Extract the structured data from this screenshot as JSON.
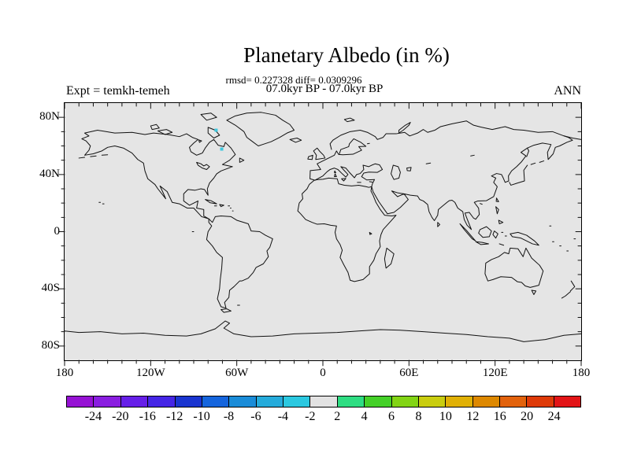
{
  "figure": {
    "title": "Planetary Albedo (in %)",
    "stats_line": "rmsd= 0.227328 diff= 0.0309296",
    "period_line": "07.0kyr BP - 07.0kyr BP",
    "experiment_label": "Expt = temkh-temeh",
    "season_label": "ANN"
  },
  "chart_data": {
    "type": "map-contour",
    "projection": "equirectangular",
    "title": "Planetary Albedo (in %)",
    "subtitle": "07.0kyr BP - 07.0kyr BP",
    "experiment": "temkh-temeh",
    "season": "ANN",
    "stats": {
      "rmsd": 0.227328,
      "diff": 0.0309296
    },
    "lon_range": [
      -180,
      180
    ],
    "lat_range": [
      -90,
      90
    ],
    "map_background": "#E5E5E5",
    "coastline_color": "#111111",
    "axes": {
      "x_ticks": [
        {
          "label": "180",
          "lon": -180
        },
        {
          "label": "120W",
          "lon": -120
        },
        {
          "label": "60W",
          "lon": -60
        },
        {
          "label": "0",
          "lon": 0
        },
        {
          "label": "60E",
          "lon": 60
        },
        {
          "label": "120E",
          "lon": 120
        },
        {
          "label": "180",
          "lon": 180
        }
      ],
      "y_ticks": [
        {
          "label": "80N",
          "lat": 80
        },
        {
          "label": "40N",
          "lat": 40
        },
        {
          "label": "0",
          "lat": 0
        },
        {
          "label": "40S",
          "lat": -40
        },
        {
          "label": "80S",
          "lat": -80
        }
      ],
      "minor_tick_step_deg": 10
    },
    "colorbar": {
      "levels": [
        -24,
        -20,
        -16,
        -12,
        -10,
        -8,
        -6,
        -4,
        -2,
        2,
        4,
        6,
        8,
        10,
        12,
        16,
        20,
        24
      ],
      "tick_labels": [
        "-24",
        "-20",
        "-16",
        "-12",
        "-10",
        "-8",
        "-6",
        "-4",
        "-2",
        "2",
        "4",
        "6",
        "8",
        "10",
        "12",
        "16",
        "20",
        "24"
      ],
      "colors": [
        "#9612D4",
        "#8A1EE0",
        "#661FE8",
        "#4526E6",
        "#1A35D0",
        "#1565DD",
        "#1A8CD8",
        "#25ABDB",
        "#2BC8E0",
        "#E2E2E2",
        "#2EDD82",
        "#44D028",
        "#82D414",
        "#C9CD0F",
        "#E0B005",
        "#DD8800",
        "#E2620C",
        "#DE3A08",
        "#E21417"
      ]
    },
    "anomaly_points": [
      {
        "lon": -74.4,
        "lat": 71.0,
        "color": "#3EC8DF"
      },
      {
        "lon": -70.5,
        "lat": 57.8,
        "color": "#3EC8DF"
      }
    ]
  }
}
